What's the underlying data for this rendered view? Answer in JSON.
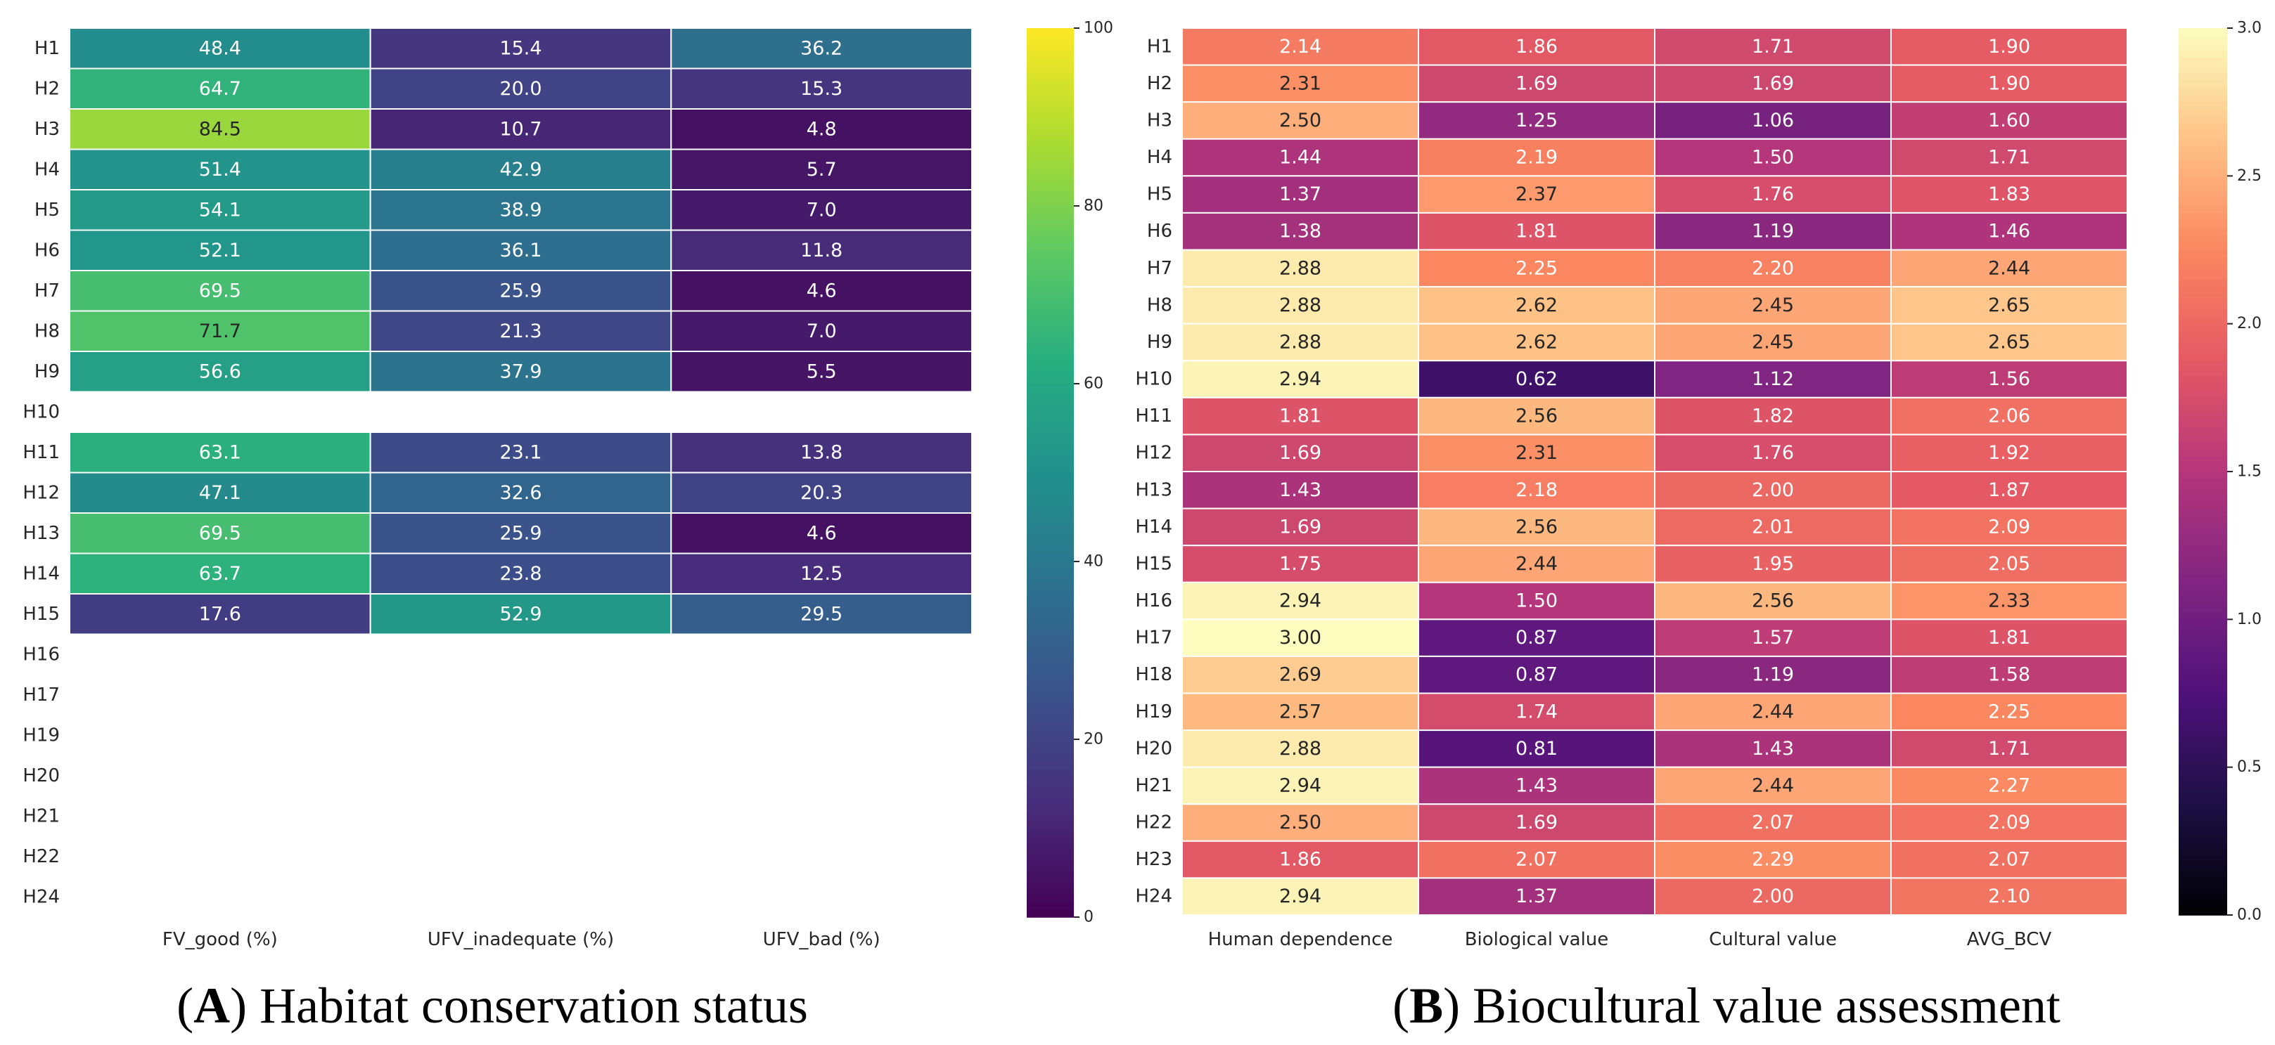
{
  "chart_data": [
    {
      "type": "heatmap",
      "caption": {
        "label": "A",
        "text": "Habitat conservation status"
      },
      "colormap": "viridis",
      "vmin": 0,
      "vmax": 100,
      "colorbar_ticks": [
        0,
        20,
        40,
        60,
        80,
        100
      ],
      "rows": [
        "H1",
        "H2",
        "H3",
        "H4",
        "H5",
        "H6",
        "H7",
        "H8",
        "H9",
        "H10",
        "H11",
        "H12",
        "H13",
        "H14",
        "H15",
        "H16",
        "H17",
        "H19",
        "H20",
        "H21",
        "H22",
        "H24"
      ],
      "columns": [
        "FV_good (%)",
        "UFV_inadequate (%)",
        "UFV_bad (%)"
      ],
      "values": [
        [
          48.4,
          15.4,
          36.2
        ],
        [
          64.7,
          20.0,
          15.3
        ],
        [
          84.5,
          10.7,
          4.8
        ],
        [
          51.4,
          42.9,
          5.7
        ],
        [
          54.1,
          38.9,
          7.0
        ],
        [
          52.1,
          36.1,
          11.8
        ],
        [
          69.5,
          25.9,
          4.6
        ],
        [
          71.7,
          21.3,
          7.0
        ],
        [
          56.6,
          37.9,
          5.5
        ],
        [
          null,
          null,
          null
        ],
        [
          63.1,
          23.1,
          13.8
        ],
        [
          47.1,
          32.6,
          20.3
        ],
        [
          69.5,
          25.9,
          4.6
        ],
        [
          63.7,
          23.8,
          12.5
        ],
        [
          17.6,
          52.9,
          29.5
        ],
        [
          null,
          null,
          null
        ],
        [
          null,
          null,
          null
        ],
        [
          null,
          null,
          null
        ],
        [
          null,
          null,
          null
        ],
        [
          null,
          null,
          null
        ],
        [
          null,
          null,
          null
        ],
        [
          null,
          null,
          null
        ]
      ],
      "decimals": 1
    },
    {
      "type": "heatmap",
      "caption": {
        "label": "B",
        "text": "Biocultural value assessment"
      },
      "colormap": "magma",
      "vmin": 0,
      "vmax": 3,
      "colorbar_ticks": [
        "0.0",
        "0.5",
        "1.0",
        "1.5",
        "2.0",
        "2.5",
        "3.0"
      ],
      "rows": [
        "H1",
        "H2",
        "H3",
        "H4",
        "H5",
        "H6",
        "H7",
        "H8",
        "H9",
        "H10",
        "H11",
        "H12",
        "H13",
        "H14",
        "H15",
        "H16",
        "H17",
        "H18",
        "H19",
        "H20",
        "H21",
        "H22",
        "H23",
        "H24"
      ],
      "columns": [
        "Human dependence",
        "Biological value",
        "Cultural value",
        "AVG_BCV"
      ],
      "values": [
        [
          2.14,
          1.86,
          1.71,
          1.9
        ],
        [
          2.31,
          1.69,
          1.69,
          1.9
        ],
        [
          2.5,
          1.25,
          1.06,
          1.6
        ],
        [
          1.44,
          2.19,
          1.5,
          1.71
        ],
        [
          1.37,
          2.37,
          1.76,
          1.83
        ],
        [
          1.38,
          1.81,
          1.19,
          1.46
        ],
        [
          2.88,
          2.25,
          2.2,
          2.44
        ],
        [
          2.88,
          2.62,
          2.45,
          2.65
        ],
        [
          2.88,
          2.62,
          2.45,
          2.65
        ],
        [
          2.94,
          0.62,
          1.12,
          1.56
        ],
        [
          1.81,
          2.56,
          1.82,
          2.06
        ],
        [
          1.69,
          2.31,
          1.76,
          1.92
        ],
        [
          1.43,
          2.18,
          2.0,
          1.87
        ],
        [
          1.69,
          2.56,
          2.01,
          2.09
        ],
        [
          1.75,
          2.44,
          1.95,
          2.05
        ],
        [
          2.94,
          1.5,
          2.56,
          2.33
        ],
        [
          3.0,
          0.87,
          1.57,
          1.81
        ],
        [
          2.69,
          0.87,
          1.19,
          1.58
        ],
        [
          2.57,
          1.74,
          2.44,
          2.25
        ],
        [
          2.88,
          0.81,
          1.43,
          1.71
        ],
        [
          2.94,
          1.43,
          2.44,
          2.27
        ],
        [
          2.5,
          1.69,
          2.07,
          2.09
        ],
        [
          1.86,
          2.07,
          2.29,
          2.07
        ],
        [
          2.94,
          1.37,
          2.0,
          2.1
        ]
      ],
      "decimals": 2
    }
  ]
}
